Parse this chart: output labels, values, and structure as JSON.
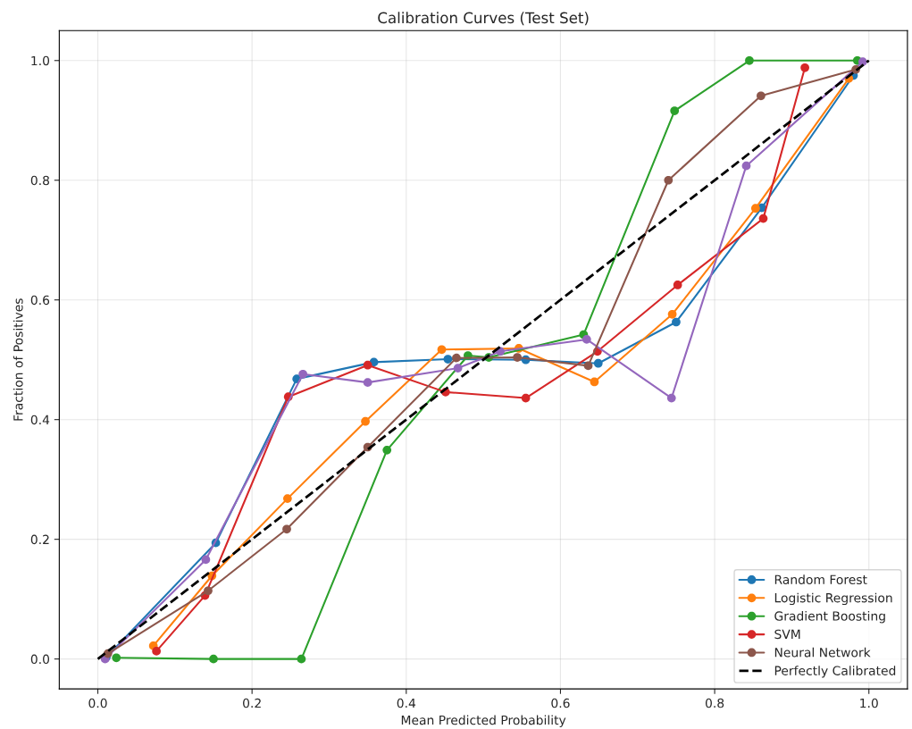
{
  "chart_data": {
    "type": "line",
    "title": "Calibration Curves (Test Set)",
    "xlabel": "Mean Predicted Probability",
    "ylabel": "Fraction of Positives",
    "xlim": [
      -0.05,
      1.05
    ],
    "ylim": [
      -0.05,
      1.05
    ],
    "xticks": [
      {
        "value": 0,
        "label": "0.0"
      },
      0.2,
      0.4,
      0.6,
      0.8,
      {
        "value": 1,
        "label": "1.0"
      }
    ],
    "yticks": [
      {
        "value": 0,
        "label": "0.0"
      },
      0.2,
      0.4,
      0.6,
      0.8,
      {
        "value": 1,
        "label": "1.0"
      }
    ],
    "grid": true,
    "legend": "bottom right",
    "marker": "circle",
    "series": [
      {
        "name": "Random Forest",
        "color": "#1f77b4",
        "x": [
          0.011,
          0.153,
          0.258,
          0.358,
          0.454,
          0.555,
          0.649,
          0.75,
          0.861,
          0.98
        ],
        "values": [
          0.003,
          0.194,
          0.468,
          0.496,
          0.501,
          0.5,
          0.494,
          0.563,
          0.754,
          0.975
        ]
      },
      {
        "name": "Logistic Regression",
        "color": "#ff7f0e",
        "x": [
          0.072,
          0.148,
          0.246,
          0.347,
          0.446,
          0.546,
          0.644,
          0.745,
          0.853,
          0.974
        ],
        "values": [
          0.022,
          0.139,
          0.268,
          0.397,
          0.517,
          0.519,
          0.463,
          0.576,
          0.753,
          0.97
        ]
      },
      {
        "name": "Gradient Boosting",
        "color": "#2ca02c",
        "x": [
          0.024,
          0.15,
          0.264,
          0.375,
          0.48,
          0.507,
          0.63,
          0.748,
          0.845,
          0.985
        ],
        "values": [
          0.002,
          0.0,
          0.0,
          0.349,
          0.507,
          0.504,
          0.542,
          0.916,
          1.0,
          1.0
        ]
      },
      {
        "name": "SVM",
        "color": "#d62728",
        "x": [
          0.076,
          0.139,
          0.247,
          0.35,
          0.451,
          0.555,
          0.648,
          0.752,
          0.863,
          0.917
        ],
        "values": [
          0.013,
          0.106,
          0.438,
          0.491,
          0.446,
          0.436,
          0.514,
          0.625,
          0.736,
          0.988
        ]
      },
      {
        "color": "#9467bd",
        "x": [
          0.0095,
          0.14,
          0.266,
          0.35,
          0.467,
          0.522,
          0.634,
          0.744,
          0.841,
          0.992
        ],
        "values": [
          0.0,
          0.166,
          0.476,
          0.462,
          0.486,
          0.514,
          0.534,
          0.436,
          0.824,
          0.998
        ]
      },
      {
        "name": "Neural Network",
        "color": "#8c564b",
        "x": [
          0.013,
          0.143,
          0.245,
          0.35,
          0.465,
          0.544,
          0.636,
          0.74,
          0.86,
          0.983
        ],
        "values": [
          0.009,
          0.114,
          0.217,
          0.354,
          0.503,
          0.504,
          0.49,
          0.8,
          0.941,
          0.985
        ]
      },
      {
        "name": "Perfectly Calibrated",
        "color": "#000000",
        "marker": "none",
        "line_style": "dashed",
        "x": [
          0.0,
          1.0
        ],
        "values": [
          0.0,
          1.0
        ]
      }
    ]
  }
}
